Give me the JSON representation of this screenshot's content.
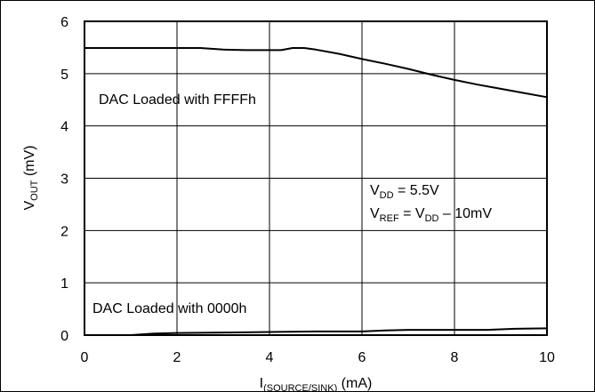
{
  "chart_data": {
    "type": "line",
    "xlabel": {
      "main": "I",
      "sub": "(SOURCE/SINK)",
      "unit": " (mA)"
    },
    "ylabel": {
      "main": "V",
      "sub": "OUT",
      "unit": " (mV)"
    },
    "xlim": [
      0,
      10
    ],
    "ylim": [
      0,
      6
    ],
    "xticks": [
      0,
      2,
      4,
      6,
      8,
      10
    ],
    "yticks": [
      0,
      1,
      2,
      3,
      4,
      5,
      6
    ],
    "grid": true,
    "series": [
      {
        "name": "DAC Loaded with FFFFh",
        "x": [
          0,
          0.5,
          1,
          1.5,
          2,
          2.5,
          3,
          3.5,
          4,
          4.25,
          4.5,
          4.75,
          5,
          5.5,
          6,
          6.5,
          7,
          7.5,
          8,
          8.5,
          9,
          9.5,
          10
        ],
        "y": [
          5.49,
          5.49,
          5.49,
          5.49,
          5.49,
          5.49,
          5.46,
          5.45,
          5.45,
          5.45,
          5.49,
          5.49,
          5.46,
          5.38,
          5.28,
          5.19,
          5.09,
          4.98,
          4.88,
          4.79,
          4.71,
          4.63,
          4.55
        ]
      },
      {
        "name": "DAC Loaded with 0000h",
        "x": [
          0,
          1,
          1.5,
          2,
          3,
          4,
          5,
          6,
          6.5,
          7,
          8,
          8.7,
          9.3,
          10
        ],
        "y": [
          0,
          0,
          0.03,
          0.04,
          0.05,
          0.06,
          0.07,
          0.07,
          0.09,
          0.1,
          0.1,
          0.1,
          0.12,
          0.13
        ]
      }
    ],
    "annotations": {
      "ffff_label": "DAC Loaded with FFFFh",
      "zero_label": "DAC Loaded with 0000h",
      "vdd_line": {
        "main": "V",
        "sub": "DD",
        "rest": " = 5.5V"
      },
      "vref_line": {
        "main": "V",
        "sub1": "REF",
        "mid": " = V",
        "sub2": "DD",
        "rest": " – 10mV"
      }
    }
  }
}
